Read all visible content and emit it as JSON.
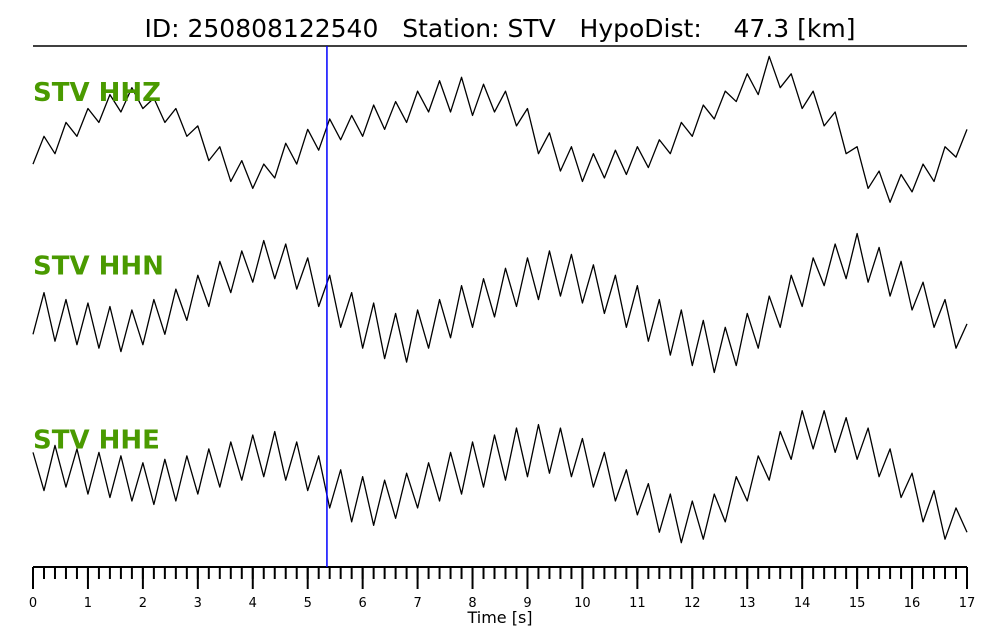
{
  "chart_data": {
    "type": "seismogram",
    "title": "ID: 250808122540   Station: STV   HypoDist:    47.3 [km]",
    "x_label": "Time [s]",
    "xlim": [
      0,
      17
    ],
    "xticks": [
      0,
      1,
      2,
      3,
      4,
      5,
      6,
      7,
      8,
      9,
      10,
      11,
      12,
      13,
      14,
      15,
      16,
      17
    ],
    "minor_tick_step": 0.2,
    "ylim": [
      -1.25,
      1.25
    ],
    "pick_time": 5.35,
    "pick_color": "#0000ff",
    "label_color": "#4a9a00",
    "x": [
      0,
      0.2,
      0.4,
      0.6,
      0.8,
      1,
      1.2,
      1.4,
      1.6,
      1.8,
      2,
      2.2,
      2.4,
      2.6,
      2.8,
      3,
      3.2,
      3.4,
      3.6,
      3.8,
      4,
      4.2,
      4.4,
      4.6,
      4.8,
      5,
      5.2,
      5.4,
      5.6,
      5.8,
      6,
      6.2,
      6.4,
      6.6,
      6.8,
      7,
      7.2,
      7.4,
      7.6,
      7.8,
      8,
      8.2,
      8.4,
      8.6,
      8.8,
      9,
      9.2,
      9.4,
      9.6,
      9.8,
      10,
      10.2,
      10.4,
      10.6,
      10.8,
      11,
      11.2,
      11.4,
      11.6,
      11.8,
      12,
      12.2,
      12.4,
      12.6,
      12.8,
      13,
      13.2,
      13.4,
      13.6,
      13.8,
      14,
      14.2,
      14.4,
      14.6,
      14.8,
      15,
      15.2,
      15.4,
      15.6,
      15.8,
      16,
      16.2,
      16.4,
      16.6,
      16.8,
      17
    ],
    "series": [
      {
        "name": "STV HHZ",
        "color": "#000000",
        "values": [
          -0.45,
          -0.05,
          -0.3,
          0.15,
          -0.05,
          0.35,
          0.15,
          0.55,
          0.3,
          0.65,
          0.35,
          0.5,
          0.15,
          0.35,
          -0.05,
          0.1,
          -0.4,
          -0.2,
          -0.7,
          -0.4,
          -0.8,
          -0.45,
          -0.65,
          -0.15,
          -0.45,
          0.05,
          -0.25,
          0.2,
          -0.1,
          0.25,
          -0.05,
          0.4,
          0.05,
          0.45,
          0.15,
          0.6,
          0.3,
          0.75,
          0.3,
          0.8,
          0.25,
          0.7,
          0.3,
          0.6,
          0.1,
          0.35,
          -0.3,
          0.0,
          -0.55,
          -0.2,
          -0.7,
          -0.3,
          -0.65,
          -0.25,
          -0.6,
          -0.2,
          -0.5,
          -0.1,
          -0.3,
          0.15,
          -0.05,
          0.4,
          0.2,
          0.6,
          0.45,
          0.85,
          0.55,
          1.1,
          0.65,
          0.85,
          0.35,
          0.6,
          0.1,
          0.3,
          -0.3,
          -0.2,
          -0.8,
          -0.55,
          -1.0,
          -0.6,
          -0.85,
          -0.45,
          -0.7,
          -0.2,
          -0.35,
          0.05
        ]
      },
      {
        "name": "STV HHN",
        "color": "#000000",
        "values": [
          -0.4,
          0.2,
          -0.5,
          0.1,
          -0.55,
          0.05,
          -0.6,
          0.0,
          -0.65,
          -0.05,
          -0.55,
          0.1,
          -0.4,
          0.25,
          -0.2,
          0.45,
          0.0,
          0.65,
          0.2,
          0.8,
          0.35,
          0.95,
          0.4,
          0.9,
          0.25,
          0.7,
          0.0,
          0.45,
          -0.3,
          0.2,
          -0.6,
          0.05,
          -0.75,
          -0.1,
          -0.8,
          -0.05,
          -0.6,
          0.1,
          -0.45,
          0.3,
          -0.3,
          0.4,
          -0.15,
          0.55,
          0.0,
          0.7,
          0.1,
          0.8,
          0.15,
          0.75,
          0.05,
          0.6,
          -0.1,
          0.45,
          -0.3,
          0.3,
          -0.5,
          0.1,
          -0.7,
          -0.05,
          -0.85,
          -0.2,
          -0.95,
          -0.3,
          -0.85,
          -0.1,
          -0.6,
          0.15,
          -0.3,
          0.45,
          0.0,
          0.7,
          0.3,
          0.9,
          0.4,
          1.05,
          0.35,
          0.85,
          0.15,
          0.65,
          -0.05,
          0.35,
          -0.3,
          0.1,
          -0.6,
          -0.25
        ]
      },
      {
        "name": "STV HHE",
        "color": "#000000",
        "values": [
          0.4,
          -0.15,
          0.5,
          -0.1,
          0.45,
          -0.2,
          0.4,
          -0.25,
          0.35,
          -0.3,
          0.25,
          -0.35,
          0.3,
          -0.3,
          0.35,
          -0.2,
          0.45,
          -0.1,
          0.55,
          0.0,
          0.65,
          0.05,
          0.7,
          0.0,
          0.55,
          -0.15,
          0.35,
          -0.4,
          0.15,
          -0.6,
          0.05,
          -0.65,
          0.0,
          -0.55,
          0.1,
          -0.4,
          0.25,
          -0.3,
          0.4,
          -0.2,
          0.55,
          -0.1,
          0.65,
          0.0,
          0.75,
          0.05,
          0.8,
          0.1,
          0.75,
          0.05,
          0.6,
          -0.1,
          0.4,
          -0.3,
          0.15,
          -0.5,
          -0.05,
          -0.75,
          -0.2,
          -0.9,
          -0.3,
          -0.85,
          -0.2,
          -0.6,
          0.05,
          -0.3,
          0.35,
          0.0,
          0.7,
          0.3,
          1.0,
          0.45,
          1.0,
          0.4,
          0.9,
          0.3,
          0.75,
          0.05,
          0.45,
          -0.25,
          0.1,
          -0.6,
          -0.15,
          -0.85,
          -0.4,
          -0.75
        ]
      }
    ]
  }
}
